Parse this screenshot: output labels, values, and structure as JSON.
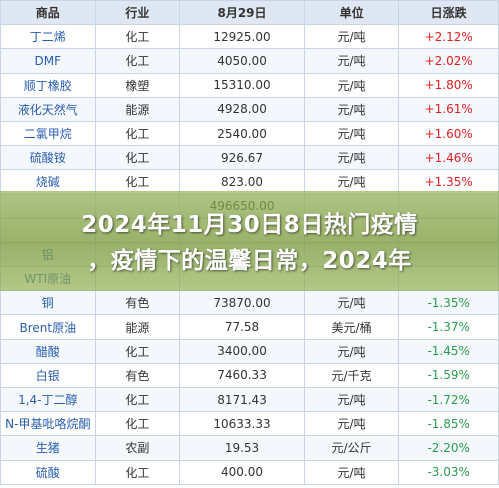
{
  "table": {
    "headers": [
      "商品",
      "行业",
      "8月29日",
      "单位",
      "日涨跌"
    ],
    "rows": [
      {
        "name": "丁二烯",
        "sector": "化工",
        "price": "12925.00",
        "unit": "元/吨",
        "change": "+2.12%",
        "dir": "up"
      },
      {
        "name": "DMF",
        "sector": "化工",
        "price": "4050.00",
        "unit": "元/吨",
        "change": "+2.02%",
        "dir": "up"
      },
      {
        "name": "顺丁橡胶",
        "sector": "橡塑",
        "price": "15310.00",
        "unit": "元/吨",
        "change": "+1.80%",
        "dir": "up"
      },
      {
        "name": "液化天然气",
        "sector": "能源",
        "price": "4928.00",
        "unit": "元/吨",
        "change": "+1.61%",
        "dir": "up"
      },
      {
        "name": "二氯甲烷",
        "sector": "化工",
        "price": "2540.00",
        "unit": "元/吨",
        "change": "+1.60%",
        "dir": "up"
      },
      {
        "name": "硫酸铵",
        "sector": "化工",
        "price": "926.67",
        "unit": "元/吨",
        "change": "+1.46%",
        "dir": "up"
      },
      {
        "name": "烧碱",
        "sector": "化工",
        "price": "823.00",
        "unit": "元/吨",
        "change": "+1.35%",
        "dir": "up"
      },
      {
        "name": "",
        "sector": "",
        "price": "496650.00",
        "unit": "",
        "change": "",
        "dir": "down"
      },
      {
        "name": "",
        "sector": "",
        "price": "",
        "unit": "",
        "change": "",
        "dir": "down"
      },
      {
        "name": "铝",
        "sector": "",
        "price": "",
        "unit": "",
        "change": "",
        "dir": "down"
      },
      {
        "name": "WTI原油",
        "sector": "",
        "price": "",
        "unit": "",
        "change": "",
        "dir": "down"
      },
      {
        "name": "铜",
        "sector": "有色",
        "price": "73870.00",
        "unit": "元/吨",
        "change": "-1.35%",
        "dir": "down"
      },
      {
        "name": "Brent原油",
        "sector": "能源",
        "price": "77.58",
        "unit": "美元/桶",
        "change": "-1.37%",
        "dir": "down"
      },
      {
        "name": "醋酸",
        "sector": "化工",
        "price": "3400.00",
        "unit": "元/吨",
        "change": "-1.45%",
        "dir": "down"
      },
      {
        "name": "白银",
        "sector": "有色",
        "price": "7460.33",
        "unit": "元/千克",
        "change": "-1.59%",
        "dir": "down"
      },
      {
        "name": "1,4-丁二醇",
        "sector": "化工",
        "price": "8171.43",
        "unit": "元/吨",
        "change": "-1.72%",
        "dir": "down"
      },
      {
        "name": "N-甲基吡咯烷酮",
        "sector": "化工",
        "price": "10633.33",
        "unit": "元/吨",
        "change": "-1.85%",
        "dir": "down"
      },
      {
        "name": "生猪",
        "sector": "农副",
        "price": "19.53",
        "unit": "元/公斤",
        "change": "-2.20%",
        "dir": "down"
      },
      {
        "name": "硫酸",
        "sector": "化工",
        "price": "400.00",
        "unit": "元/吨",
        "change": "-3.03%",
        "dir": "down"
      }
    ]
  },
  "overlay": {
    "line1": "2024年11月30日8日热门疫情",
    "line2": "，疫情下的温馨日常，2024年"
  }
}
